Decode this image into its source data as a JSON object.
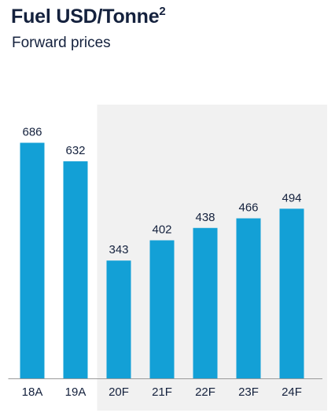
{
  "title": "Fuel USD/Tonne",
  "title_superscript": "2",
  "subtitle": "Forward prices",
  "colors": {
    "bar": "#13a0d6",
    "forecast_bg": "#f1f1f1",
    "axis": "#9a9a9a",
    "text": "#14213d"
  },
  "chart_data": {
    "type": "bar",
    "categories": [
      "18A",
      "19A",
      "20F",
      "21F",
      "22F",
      "23F",
      "24F"
    ],
    "values": [
      686,
      632,
      343,
      402,
      438,
      466,
      494
    ],
    "forecast_start_category": "20F",
    "ylim": [
      0,
      800
    ],
    "grid": false
  }
}
